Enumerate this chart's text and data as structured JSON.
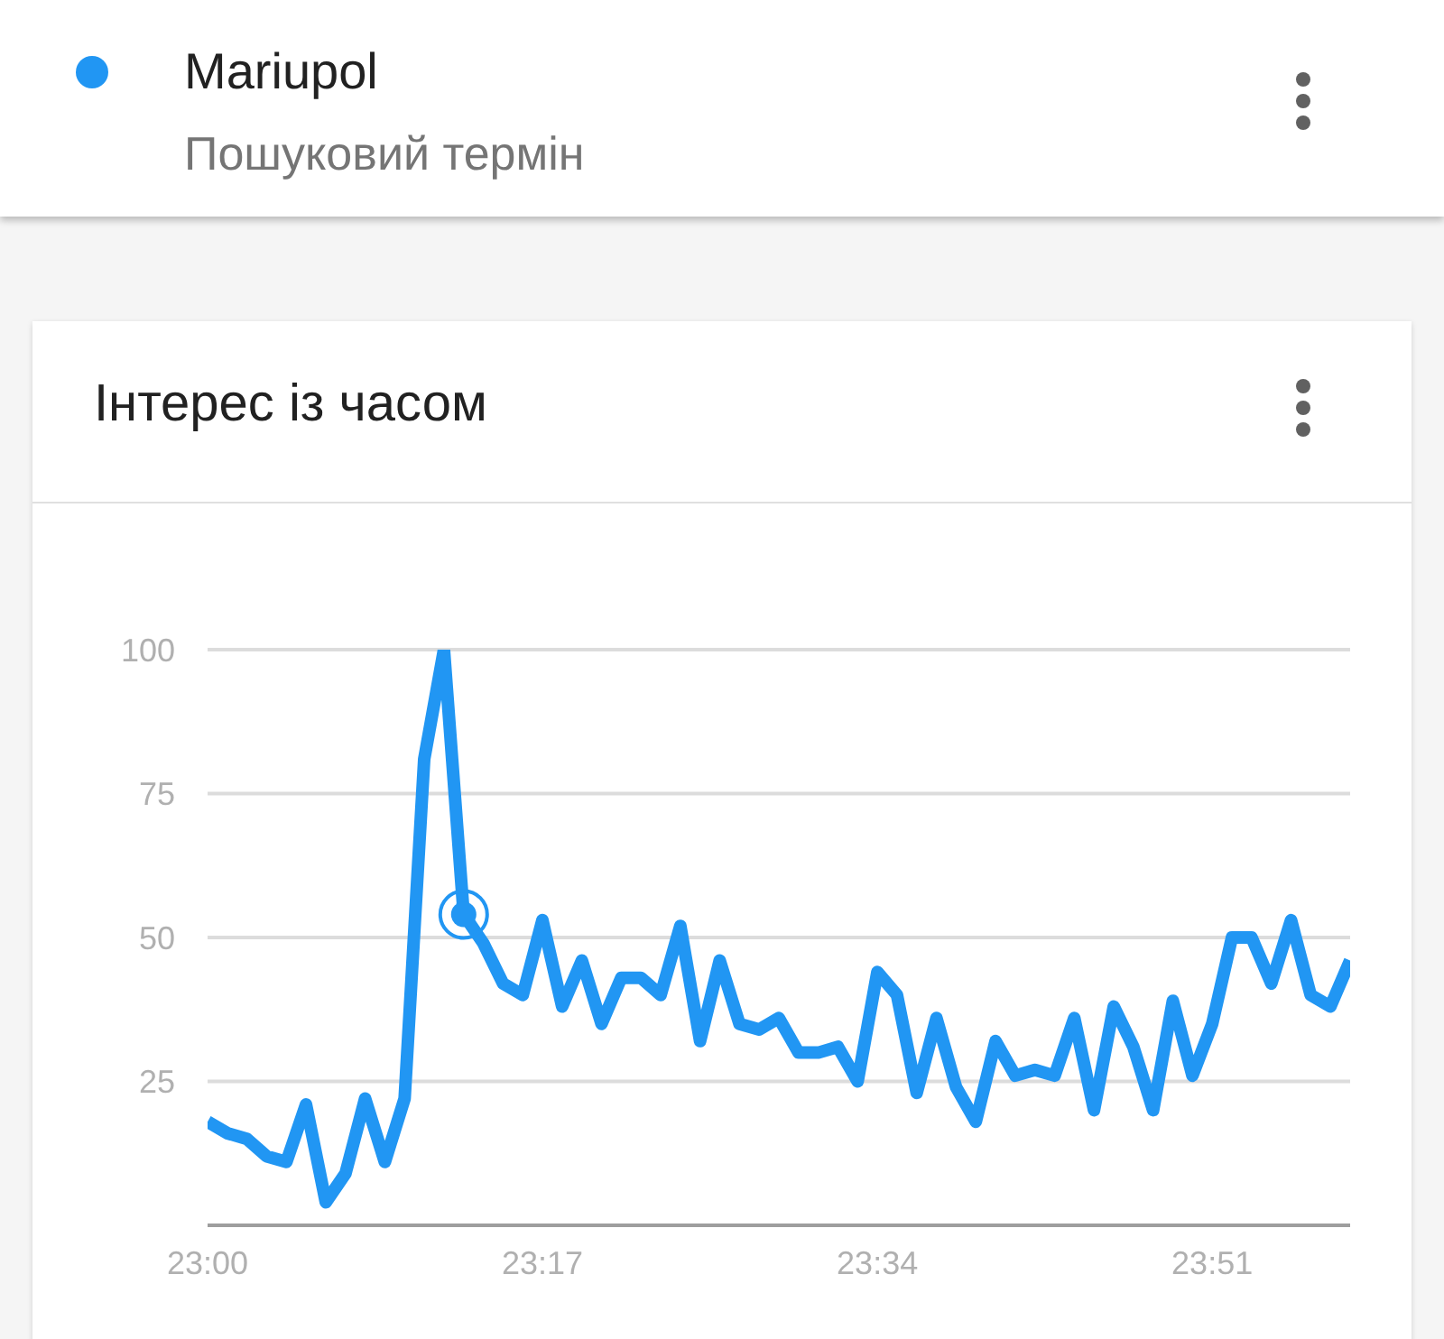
{
  "chart_data": {
    "type": "line",
    "title": "Інтерес із часом",
    "annotations": [
      "Пошуковий термін"
    ],
    "legend": "top left",
    "grid": "y",
    "x": [
      23,
      23.0167,
      23.0333,
      23.05,
      23.0667,
      23.0833,
      23.1,
      23.1167,
      23.1333,
      23.15,
      23.1667,
      23.1833,
      23.2,
      23.2167,
      23.2333,
      23.25,
      23.2667,
      23.2833,
      23.3,
      23.3167,
      23.3333,
      23.35,
      23.3667,
      23.3833,
      23.4,
      23.4167,
      23.4333,
      23.45,
      23.4667,
      23.4833,
      23.5,
      23.5167,
      23.5333,
      23.55,
      23.5667,
      23.5833,
      23.6,
      23.6167,
      23.6333,
      23.65,
      23.6667,
      23.6833,
      23.7,
      23.7167,
      23.7333,
      23.75,
      23.7667,
      23.7833,
      23.8,
      23.8167,
      23.8333,
      23.85,
      23.8667,
      23.8833,
      23.9,
      23.9167,
      23.9333,
      23.95,
      23.9667
    ],
    "series": [
      {
        "name": "Mariupol",
        "color": "#2196f3",
        "values": [
          18,
          16,
          15,
          12,
          11,
          21,
          4,
          9,
          22,
          11,
          22,
          81,
          100,
          54,
          49,
          42,
          40,
          53,
          38,
          46,
          35,
          43,
          43,
          40,
          52,
          32,
          46,
          35,
          34,
          36,
          30,
          30,
          31,
          25,
          44,
          40,
          23,
          36,
          24,
          18,
          32,
          26,
          27,
          26,
          36,
          20,
          38,
          31,
          20,
          39,
          26,
          35,
          50,
          50,
          42,
          53,
          40,
          38,
          46
        ]
      },
      {
        "type": "scatter",
        "color": "#2196f3",
        "marker": "circle",
        "x": [
          23.2167
        ],
        "values": [
          54
        ]
      }
    ],
    "xlim": [
      23,
      23.9667
    ],
    "xticks": [
      {
        "value": 23,
        "label": "23:00"
      },
      {
        "value": 23.2833,
        "label": "23:17"
      },
      {
        "value": 23.5667,
        "label": "23:34"
      },
      {
        "value": 23.85,
        "label": "23:51"
      }
    ],
    "ylim": [
      0,
      100
    ],
    "yticks": [
      25,
      50,
      75,
      100
    ]
  }
}
